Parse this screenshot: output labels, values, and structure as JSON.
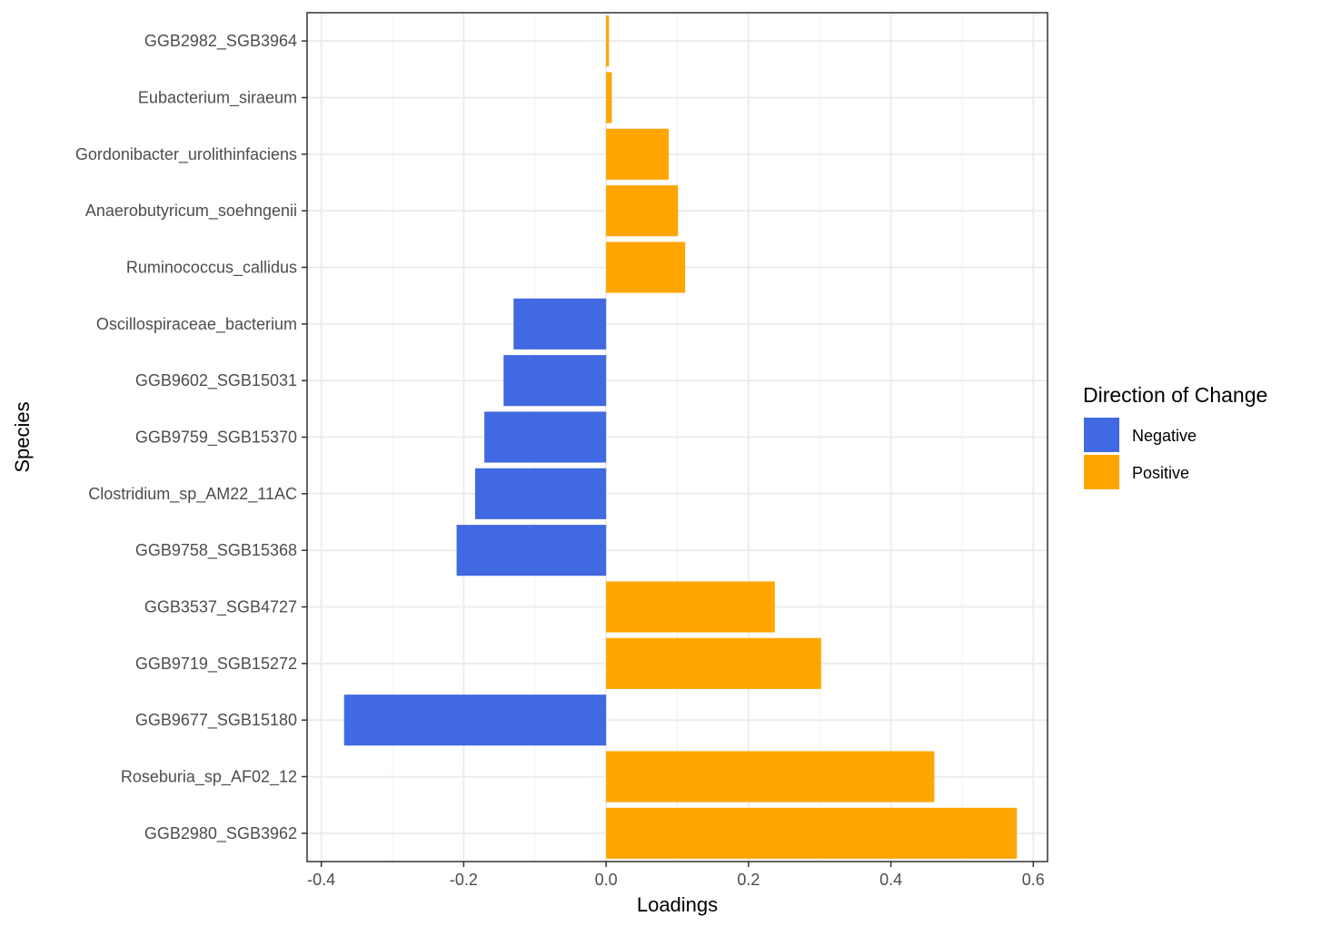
{
  "chart_data": {
    "type": "bar",
    "orientation": "horizontal",
    "xlabel": "Loadings",
    "ylabel": "Species",
    "xlim": [
      -0.42,
      0.62
    ],
    "xticks": [
      -0.4,
      -0.2,
      0.0,
      0.2,
      0.4,
      0.6
    ],
    "xtick_labels": [
      "-0.4",
      "-0.2",
      "0.0",
      "0.2",
      "0.4",
      "0.6"
    ],
    "grid": true,
    "legend_position": "right",
    "legend": {
      "title": "Direction of Change",
      "entries": [
        {
          "label": "Negative",
          "color": "#4169E1"
        },
        {
          "label": "Positive",
          "color": "#FFA500"
        }
      ]
    },
    "categories": [
      "GGB2982_SGB3964",
      "Eubacterium_siraeum",
      "Gordonibacter_urolithinfaciens",
      "Anaerobutyricum_soehngenii",
      "Ruminococcus_callidus",
      "Oscillospiraceae_bacterium",
      "GGB9602_SGB15031",
      "GGB9759_SGB15370",
      "Clostridium_sp_AM22_11AC",
      "GGB9758_SGB15368",
      "GGB3537_SGB4727",
      "GGB9719_SGB15272",
      "GGB9677_SGB15180",
      "Roseburia_sp_AF02_12",
      "GGB2980_SGB3962"
    ],
    "values": [
      0.004,
      0.008,
      0.088,
      0.101,
      0.111,
      -0.13,
      -0.144,
      -0.171,
      -0.184,
      -0.21,
      0.237,
      0.302,
      -0.368,
      0.461,
      0.577
    ],
    "direction": [
      "Positive",
      "Positive",
      "Positive",
      "Positive",
      "Positive",
      "Negative",
      "Negative",
      "Negative",
      "Negative",
      "Negative",
      "Positive",
      "Positive",
      "Negative",
      "Positive",
      "Positive"
    ]
  }
}
